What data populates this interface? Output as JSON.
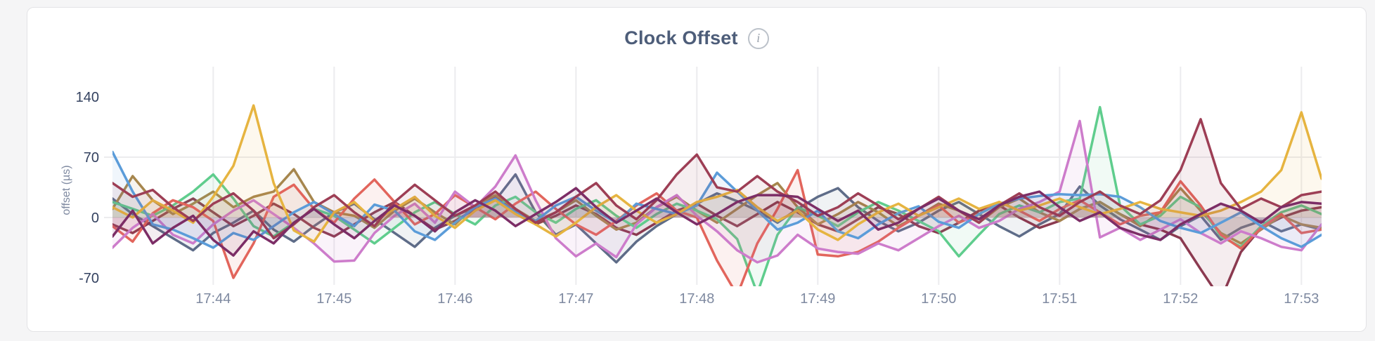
{
  "page": {
    "background": "#f5f5f6"
  },
  "card": {
    "background": "#ffffff",
    "border_color": "#e3e3e6"
  },
  "header": {
    "title": "Clock Offset",
    "info_icon_glyph": "i"
  },
  "chart_data": {
    "type": "line",
    "title": "Clock Offset",
    "xlabel": "",
    "ylabel": "offset (µs)",
    "legend": "none",
    "grid": "on",
    "x_start_time": "17:43:10",
    "x_interval_seconds": 10,
    "x_ticks": [
      "17:44",
      "17:45",
      "17:46",
      "17:47",
      "17:48",
      "17:49",
      "17:50",
      "17:51",
      "17:52",
      "17:53"
    ],
    "y_ticks": [
      140,
      70,
      0,
      -70
    ],
    "ylim": [
      -82,
      172
    ],
    "grid_y_values": [
      70,
      0
    ],
    "area_fill_opacity": 0.09,
    "colors": {
      "grid": "#ececee",
      "y_tick_label": "#33415f",
      "x_tick_label": "#7e89a0",
      "axis_label": "#7e89a0"
    },
    "series": [
      {
        "name": "series-slate",
        "color": "#5e6c88",
        "values": [
          22,
          4,
          -10,
          -24,
          -38,
          -18,
          -6,
          8,
          -14,
          -28,
          -10,
          6,
          16,
          -2,
          -18,
          -34,
          -12,
          2,
          12,
          20,
          50,
          6,
          -20,
          -8,
          -30,
          -52,
          -28,
          -10,
          4,
          16,
          28,
          19,
          8,
          -6,
          10,
          24,
          34,
          12,
          -4,
          -16,
          -6,
          8,
          18,
          4,
          -10,
          -22,
          -8,
          4,
          36,
          14,
          -2,
          -14,
          -26,
          -10,
          2,
          -26,
          -12,
          -4,
          -16,
          -8,
          -14
        ]
      },
      {
        "name": "series-wine",
        "color": "#8b3a50",
        "values": [
          -8,
          -18,
          -4,
          10,
          22,
          6,
          -10,
          2,
          16,
          4,
          -12,
          -22,
          -8,
          6,
          18,
          2,
          -14,
          -4,
          10,
          24,
          8,
          -8,
          2,
          14,
          4,
          -12,
          -20,
          -6,
          8,
          16,
          2,
          -10,
          4,
          18,
          6,
          -8,
          -16,
          -2,
          12,
          4,
          -10,
          -18,
          -6,
          8,
          14,
          0,
          -12,
          -4,
          10,
          18,
          4,
          -8,
          -14,
          -24,
          -60,
          -95,
          -40,
          -12,
          0,
          8,
          12
        ]
      },
      {
        "name": "series-olive",
        "color": "#a6864d",
        "values": [
          10,
          48,
          20,
          4,
          16,
          30,
          12,
          24,
          30,
          56,
          18,
          6,
          2,
          -12,
          8,
          22,
          6,
          -8,
          14,
          26,
          10,
          -4,
          6,
          20,
          2,
          -14,
          -6,
          12,
          24,
          8,
          -6,
          10,
          26,
          40,
          12,
          -8,
          4,
          18,
          6,
          -10,
          2,
          16,
          8,
          -6,
          12,
          22,
          6,
          -4,
          10,
          18,
          4,
          -10,
          6,
          34,
          8,
          -18,
          -30,
          -14,
          2,
          -8,
          -12
        ]
      },
      {
        "name": "series-green",
        "color": "#5fcd8d",
        "values": [
          18,
          10,
          2,
          14,
          30,
          50,
          22,
          -10,
          -22,
          -6,
          10,
          2,
          -14,
          -30,
          -12,
          6,
          18,
          4,
          -8,
          14,
          24,
          6,
          -6,
          10,
          20,
          2,
          -12,
          4,
          16,
          8,
          -2,
          -25,
          -88,
          -20,
          12,
          2,
          -10,
          6,
          18,
          8,
          -4,
          -16,
          -45,
          -20,
          4,
          14,
          6,
          18,
          22,
          128,
          14,
          -8,
          2,
          24,
          12,
          -22,
          -34,
          -10,
          6,
          14,
          4
        ]
      },
      {
        "name": "series-salmon",
        "color": "#e2655c",
        "values": [
          -10,
          -28,
          5,
          20,
          12,
          -4,
          -70,
          -30,
          24,
          38,
          10,
          -6,
          22,
          44,
          18,
          -8,
          4,
          26,
          12,
          -2,
          16,
          30,
          10,
          -8,
          -20,
          -4,
          14,
          28,
          8,
          0,
          -50,
          -90,
          -30,
          10,
          55,
          -43,
          -45,
          -40,
          -28,
          -12,
          2,
          14,
          -6,
          4,
          18,
          8,
          -4,
          10,
          20,
          6,
          -8,
          2,
          6,
          42,
          14,
          -20,
          -36,
          -12,
          4,
          -18,
          -14
        ]
      },
      {
        "name": "series-orchid",
        "color": "#cd7ccb",
        "values": [
          -35,
          -12,
          4,
          -20,
          -30,
          -8,
          8,
          20,
          4,
          -12,
          -30,
          -51,
          -50,
          -18,
          2,
          16,
          -6,
          30,
          12,
          36,
          72,
          20,
          -24,
          -45,
          -30,
          -46,
          -8,
          12,
          26,
          2,
          -16,
          -38,
          -52,
          -44,
          -20,
          -36,
          -40,
          -42,
          -30,
          -38,
          -24,
          -10,
          2,
          -12,
          -4,
          10,
          18,
          30,
          112,
          -23,
          -12,
          -26,
          -14,
          -2,
          -18,
          -30,
          -16,
          -24,
          -34,
          -38,
          -8
        ]
      },
      {
        "name": "series-blue",
        "color": "#5b9cd9",
        "values": [
          76,
          30,
          -8,
          -14,
          -24,
          -35,
          -18,
          -26,
          -10,
          6,
          18,
          4,
          -10,
          15,
          8,
          -16,
          -26,
          -6,
          12,
          22,
          6,
          -4,
          14,
          24,
          8,
          -6,
          16,
          10,
          4,
          14,
          52,
          30,
          8,
          -14,
          -6,
          8,
          -16,
          -24,
          -8,
          5,
          13,
          -5,
          -12,
          4,
          16,
          22,
          25,
          27,
          26,
          27,
          24,
          12,
          -4,
          -12,
          -18,
          -6,
          6,
          -10,
          -24,
          -34,
          -20
        ]
      },
      {
        "name": "series-gold",
        "color": "#e6b440",
        "values": [
          12,
          0,
          20,
          8,
          -6,
          24,
          60,
          130,
          40,
          -15,
          -28,
          6,
          18,
          -4,
          10,
          24,
          2,
          -12,
          8,
          20,
          4,
          -8,
          -22,
          -6,
          12,
          26,
          8,
          -6,
          4,
          18,
          24,
          32,
          12,
          -4,
          8,
          -14,
          -26,
          -8,
          6,
          16,
          2,
          12,
          22,
          10,
          18,
          8,
          14,
          22,
          12,
          4,
          10,
          18,
          10,
          6,
          2,
          8,
          18,
          30,
          55,
          122,
          45
        ]
      },
      {
        "name": "series-maroon",
        "color": "#9d3e55",
        "values": [
          40,
          24,
          32,
          12,
          -4,
          16,
          28,
          8,
          -24,
          -8,
          12,
          26,
          6,
          -10,
          18,
          38,
          20,
          2,
          14,
          30,
          10,
          -6,
          6,
          24,
          40,
          14,
          -2,
          20,
          50,
          73,
          35,
          30,
          48,
          30,
          18,
          2,
          12,
          28,
          14,
          -2,
          10,
          24,
          8,
          -6,
          14,
          28,
          12,
          2,
          18,
          30,
          14,
          4,
          20,
          55,
          114,
          40,
          10,
          22,
          12,
          26,
          30
        ]
      },
      {
        "name": "series-purple",
        "color": "#7c2d66",
        "values": [
          -22,
          8,
          -30,
          -12,
          2,
          -26,
          -44,
          -16,
          -30,
          -6,
          10,
          -8,
          -24,
          -4,
          14,
          2,
          -16,
          6,
          20,
          8,
          -10,
          4,
          18,
          34,
          12,
          -6,
          8,
          22,
          6,
          -8,
          4,
          18,
          26,
          26,
          24,
          10,
          -4,
          8,
          -14,
          -6,
          10,
          22,
          8,
          -2,
          14,
          24,
          30,
          12,
          -4,
          6,
          -12,
          -20,
          -26,
          -8,
          4,
          16,
          8,
          -6,
          12,
          18,
          16
        ]
      }
    ]
  }
}
